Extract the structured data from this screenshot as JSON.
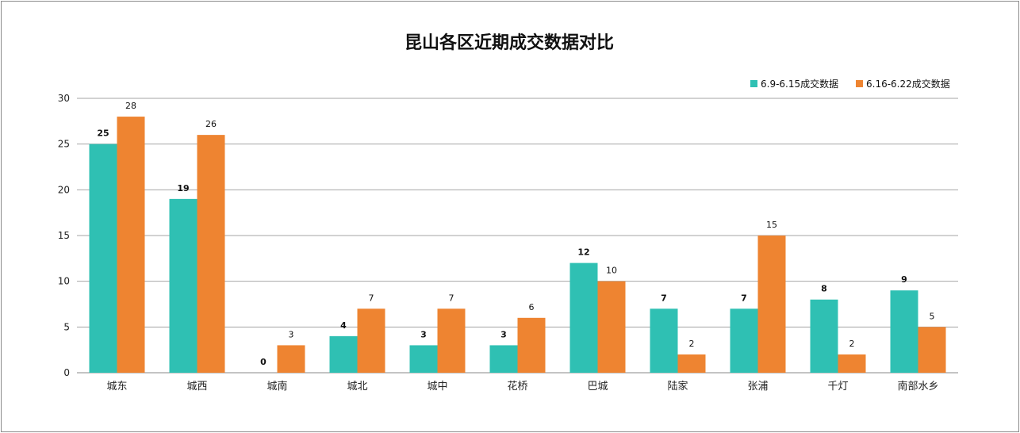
{
  "chart_data": {
    "type": "bar",
    "title": "昆山各区近期成交数据对比",
    "xlabel": "",
    "ylabel": "",
    "ylim": [
      0,
      30
    ],
    "yticks": [
      0,
      5,
      10,
      15,
      20,
      25,
      30
    ],
    "grid": true,
    "legend_position": "top-right",
    "categories": [
      "城东",
      "城西",
      "城南",
      "城北",
      "城中",
      "花桥",
      "巴城",
      "陆家",
      "张浦",
      "千灯",
      "南部水乡"
    ],
    "series": [
      {
        "name": "6.9-6.15成交数据",
        "color": "#2fc0b3",
        "label_bold": true,
        "values": [
          25,
          19,
          0,
          4,
          3,
          3,
          12,
          7,
          7,
          8,
          9
        ]
      },
      {
        "name": "6.16-6.22成交数据",
        "color": "#ee8431",
        "label_bold": false,
        "values": [
          28,
          26,
          3,
          7,
          7,
          6,
          10,
          2,
          15,
          2,
          5
        ]
      }
    ]
  }
}
